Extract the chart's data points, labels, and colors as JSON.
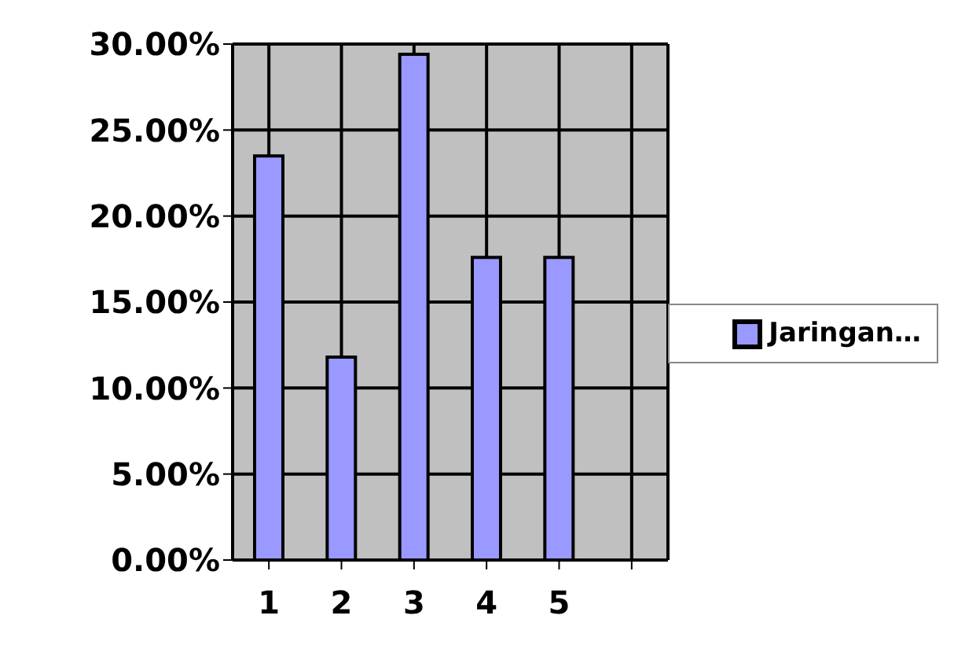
{
  "chart_data": {
    "type": "bar",
    "categories": [
      "1",
      "2",
      "3",
      "4",
      "5",
      null
    ],
    "series": [
      {
        "name": "Jaringan…",
        "color": "#9999ff",
        "values": [
          23.5,
          11.8,
          29.4,
          17.6,
          17.6,
          null
        ]
      }
    ],
    "ylim": [
      0,
      30
    ],
    "yticks": [
      {
        "value": 0,
        "label": "0.00%"
      },
      {
        "value": 5,
        "label": "5.00%"
      },
      {
        "value": 10,
        "label": "10.00%"
      },
      {
        "value": 15,
        "label": "15.00%"
      },
      {
        "value": 20,
        "label": "20.00%"
      },
      {
        "value": 25,
        "label": "25.00%"
      },
      {
        "value": 30,
        "label": "30.00%"
      }
    ],
    "grid": true,
    "legend": "right"
  }
}
